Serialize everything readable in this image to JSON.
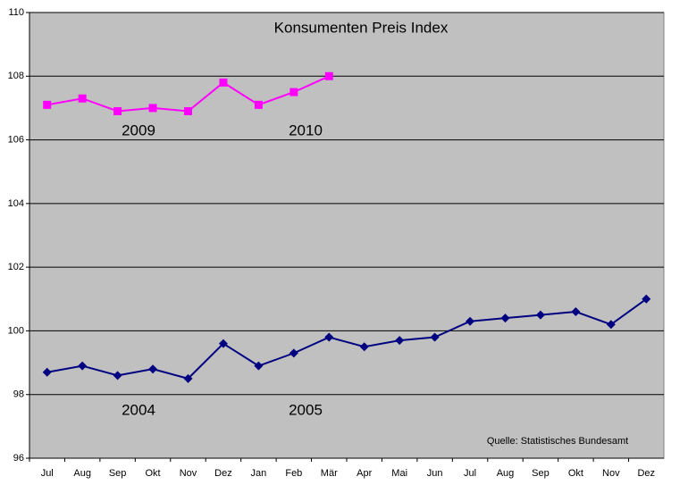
{
  "chart_data": {
    "type": "line",
    "title": "Konsumenten Preis Index",
    "categories": [
      "Jul",
      "Aug",
      "Sep",
      "Okt",
      "Nov",
      "Dez",
      "Jan",
      "Feb",
      "Mär",
      "Apr",
      "Mai",
      "Jun",
      "Jul",
      "Aug",
      "Sep",
      "Okt",
      "Nov",
      "Dez"
    ],
    "series": [
      {
        "color": "#000080",
        "marker": "diamond",
        "values": [
          98.7,
          98.9,
          98.6,
          98.8,
          98.5,
          99.6,
          98.9,
          99.3,
          99.8,
          99.5,
          99.7,
          99.8,
          100.3,
          100.4,
          100.5,
          100.6,
          100.2,
          101.0
        ]
      },
      {
        "color": "#ff00ff",
        "marker": "square",
        "values": [
          107.1,
          107.3,
          106.9,
          107.0,
          106.9,
          107.8,
          107.1,
          107.5,
          108.0,
          null,
          null,
          null,
          null,
          null,
          null,
          null,
          null,
          null
        ]
      }
    ],
    "ylim": [
      96,
      110
    ],
    "yticks": [
      96,
      98,
      100,
      102,
      104,
      106,
      108,
      110
    ],
    "grid": true,
    "annotations": [
      {
        "text": "2009"
      },
      {
        "text": "2010"
      },
      {
        "text": "2004"
      },
      {
        "text": "2005"
      },
      {
        "text": "Quelle: Statistisches Bundesamt"
      }
    ]
  }
}
